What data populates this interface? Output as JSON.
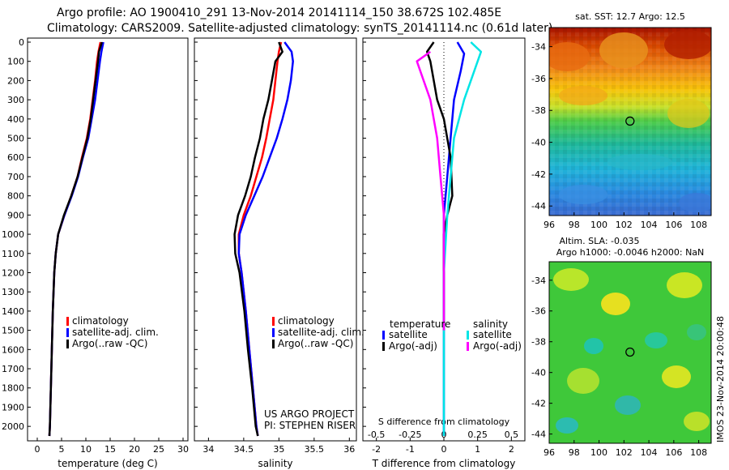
{
  "header": {
    "line1": "Argo profile: AO 1900410_291 13-Nov-2014 20141114_150 38.672S 102.485E",
    "line2": "Climatology: CARS2009. Satellite-adjusted climatology: synTS_20141114.nc (0.61d later)"
  },
  "chart_data": [
    {
      "type": "line",
      "xlabel": "temperature (deg C)",
      "ylabel": "",
      "xlim": [
        -2,
        31
      ],
      "ylim": [
        2050,
        0
      ],
      "yticks": [
        "0",
        "100",
        "200",
        "300",
        "400",
        "500",
        "600",
        "700",
        "800",
        "900",
        "1000",
        "1100",
        "1200",
        "1300",
        "1400",
        "1500",
        "1600",
        "1700",
        "1800",
        "1900",
        "2000"
      ],
      "xticks": [
        "0",
        "5",
        "10",
        "15",
        "20",
        "25",
        "30"
      ],
      "legend": "center-right",
      "series": [
        {
          "name": "climatology",
          "color": "#ff0000",
          "points": [
            [
              13.0,
              0
            ],
            [
              12.6,
              50
            ],
            [
              12.3,
              100
            ],
            [
              11.9,
              200
            ],
            [
              11.4,
              300
            ],
            [
              10.9,
              400
            ],
            [
              10.2,
              500
            ],
            [
              9.2,
              600
            ],
            [
              8.3,
              700
            ],
            [
              7.0,
              800
            ],
            [
              5.6,
              900
            ],
            [
              4.3,
              1000
            ],
            [
              3.8,
              1100
            ],
            [
              3.5,
              1200
            ],
            [
              3.2,
              1400
            ],
            [
              3.0,
              1600
            ],
            [
              2.8,
              1800
            ],
            [
              2.6,
              2000
            ],
            [
              2.5,
              2050
            ]
          ]
        },
        {
          "name": "satellite-adj. clim.",
          "color": "#0000ff",
          "points": [
            [
              13.6,
              0
            ],
            [
              13.2,
              50
            ],
            [
              12.9,
              100
            ],
            [
              12.4,
              200
            ],
            [
              11.9,
              300
            ],
            [
              11.2,
              400
            ],
            [
              10.5,
              500
            ],
            [
              9.4,
              600
            ],
            [
              8.4,
              700
            ],
            [
              7.1,
              800
            ],
            [
              5.6,
              900
            ],
            [
              4.3,
              1000
            ],
            [
              3.8,
              1100
            ],
            [
              3.5,
              1200
            ],
            [
              3.2,
              1400
            ],
            [
              3.0,
              1600
            ],
            [
              2.8,
              1800
            ],
            [
              2.6,
              2000
            ],
            [
              2.5,
              2050
            ]
          ]
        },
        {
          "name": "Argo(..raw -QC)",
          "color": "#000000",
          "points": [
            [
              13.3,
              0
            ],
            [
              12.7,
              50
            ],
            [
              12.5,
              100
            ],
            [
              12.0,
              200
            ],
            [
              11.5,
              300
            ],
            [
              11.0,
              400
            ],
            [
              10.3,
              500
            ],
            [
              9.3,
              600
            ],
            [
              8.3,
              700
            ],
            [
              7.0,
              800
            ],
            [
              5.5,
              900
            ],
            [
              4.3,
              1000
            ],
            [
              3.8,
              1100
            ],
            [
              3.5,
              1200
            ],
            [
              3.2,
              1400
            ],
            [
              3.0,
              1600
            ],
            [
              2.8,
              1800
            ],
            [
              2.6,
              2000
            ],
            [
              2.5,
              2050
            ]
          ]
        }
      ]
    },
    {
      "type": "line",
      "xlabel": "salinity",
      "xlim": [
        33.8,
        36.1
      ],
      "ylim": [
        2050,
        0
      ],
      "xticks": [
        "34",
        "34.5",
        "35",
        "35.5",
        "36"
      ],
      "legend": "center-right",
      "annotations": [
        "US ARGO PROJECT",
        "PI: STEPHEN RISER"
      ],
      "series": [
        {
          "name": "climatology",
          "color": "#ff0000",
          "points": [
            [
              35.03,
              0
            ],
            [
              35.0,
              50
            ],
            [
              34.98,
              100
            ],
            [
              34.95,
              200
            ],
            [
              34.92,
              300
            ],
            [
              34.87,
              400
            ],
            [
              34.82,
              500
            ],
            [
              34.76,
              600
            ],
            [
              34.68,
              700
            ],
            [
              34.6,
              800
            ],
            [
              34.5,
              900
            ],
            [
              34.43,
              1000
            ],
            [
              34.43,
              1100
            ],
            [
              34.47,
              1200
            ],
            [
              34.53,
              1400
            ],
            [
              34.58,
              1600
            ],
            [
              34.63,
              1800
            ],
            [
              34.68,
              2000
            ],
            [
              34.7,
              2050
            ]
          ]
        },
        {
          "name": "satellite-adj. clim.",
          "color": "#0000ff",
          "points": [
            [
              35.08,
              0
            ],
            [
              35.18,
              50
            ],
            [
              35.2,
              100
            ],
            [
              35.17,
              200
            ],
            [
              35.12,
              300
            ],
            [
              35.05,
              400
            ],
            [
              34.97,
              500
            ],
            [
              34.87,
              600
            ],
            [
              34.77,
              700
            ],
            [
              34.65,
              800
            ],
            [
              34.53,
              900
            ],
            [
              34.44,
              1000
            ],
            [
              34.43,
              1100
            ],
            [
              34.47,
              1200
            ],
            [
              34.53,
              1400
            ],
            [
              34.58,
              1600
            ],
            [
              34.63,
              1800
            ],
            [
              34.68,
              2000
            ],
            [
              34.7,
              2050
            ]
          ]
        },
        {
          "name": "Argo(..raw -QC)",
          "color": "#000000",
          "points": [
            [
              35.0,
              0
            ],
            [
              35.05,
              50
            ],
            [
              34.95,
              100
            ],
            [
              34.9,
              200
            ],
            [
              34.85,
              300
            ],
            [
              34.78,
              400
            ],
            [
              34.73,
              500
            ],
            [
              34.66,
              600
            ],
            [
              34.6,
              700
            ],
            [
              34.52,
              800
            ],
            [
              34.42,
              900
            ],
            [
              34.37,
              1000
            ],
            [
              34.38,
              1100
            ],
            [
              34.44,
              1200
            ],
            [
              34.51,
              1400
            ],
            [
              34.56,
              1600
            ],
            [
              34.62,
              1800
            ],
            [
              34.67,
              2000
            ],
            [
              34.7,
              2050
            ]
          ]
        }
      ]
    },
    {
      "type": "line",
      "xlabel": "T difference from climatology",
      "x2label": "S difference from climatology",
      "xlim": [
        -2.4,
        2.4
      ],
      "ylim": [
        2050,
        0
      ],
      "xticks": [
        "-2",
        "-1",
        "0",
        "1",
        "2"
      ],
      "x2ticks": [
        "-0.5",
        "-0.25",
        "0",
        "0.25",
        "0.5"
      ],
      "legend": "center",
      "legend_groups": [
        "temperature",
        "salinity"
      ],
      "series": [
        {
          "name": "satellite",
          "group": "temperature",
          "color": "#0000ff",
          "points": [
            [
              0.4,
              0
            ],
            [
              0.6,
              60
            ],
            [
              0.5,
              150
            ],
            [
              0.3,
              300
            ],
            [
              0.2,
              500
            ],
            [
              0.1,
              700
            ],
            [
              0.0,
              900
            ],
            [
              0.0,
              1200
            ],
            [
              0.0,
              1500
            ],
            [
              0.0,
              1800
            ],
            [
              0.0,
              2050
            ]
          ]
        },
        {
          "name": "Argo(-adj)",
          "group": "temperature",
          "color": "#000000",
          "points": [
            [
              -0.3,
              0
            ],
            [
              -0.5,
              50
            ],
            [
              -0.4,
              100
            ],
            [
              -0.3,
              200
            ],
            [
              -0.2,
              300
            ],
            [
              0.0,
              400
            ],
            [
              0.2,
              600
            ],
            [
              0.25,
              800
            ],
            [
              0.1,
              900
            ],
            [
              0.0,
              1000
            ],
            [
              0.0,
              1200
            ],
            [
              0.0,
              1500
            ]
          ]
        },
        {
          "name": "satellite",
          "group": "salinity",
          "color": "#00e5e5",
          "points": [
            [
              0.8,
              0
            ],
            [
              1.1,
              50
            ],
            [
              0.9,
              150
            ],
            [
              0.6,
              300
            ],
            [
              0.3,
              500
            ],
            [
              0.2,
              700
            ],
            [
              0.1,
              900
            ],
            [
              0.0,
              1200
            ],
            [
              0.0,
              1500
            ],
            [
              0.0,
              1800
            ],
            [
              0.0,
              2050
            ]
          ]
        },
        {
          "name": "Argo(-adj)",
          "group": "salinity",
          "color": "#ff00ff",
          "points": [
            [
              -0.4,
              50
            ],
            [
              -0.8,
              100
            ],
            [
              -0.6,
              200
            ],
            [
              -0.4,
              300
            ],
            [
              -0.2,
              500
            ],
            [
              -0.1,
              700
            ],
            [
              0.0,
              900
            ],
            [
              0.0,
              1200
            ],
            [
              0.0,
              1500
            ]
          ]
        }
      ]
    },
    {
      "type": "heatmap",
      "title": "sat. SST: 12.7 Argo: 12.5",
      "xticks": [
        "96",
        "98",
        "100",
        "102",
        "104",
        "106",
        "108"
      ],
      "yticks": [
        "-34",
        "-36",
        "-38",
        "-40",
        "-42",
        "-44"
      ],
      "xlim": [
        96,
        109
      ],
      "ylim": [
        -44.6,
        -32.8
      ],
      "marker": {
        "lon": 102.485,
        "lat": -38.672
      }
    },
    {
      "type": "heatmap",
      "title": "Altim. SLA: -0.035",
      "subtitle": "Argo h1000: -0.0046 h2000: NaN",
      "xticks": [
        "96",
        "98",
        "100",
        "102",
        "104",
        "106",
        "108"
      ],
      "yticks": [
        "-34",
        "-36",
        "-38",
        "-40",
        "-42",
        "-44"
      ],
      "xlim": [
        96,
        109
      ],
      "ylim": [
        -44.6,
        -32.8
      ],
      "marker": {
        "lon": 102.485,
        "lat": -38.672
      },
      "side_label": "IMOS 23-Nov-2014 20:00:48"
    }
  ]
}
